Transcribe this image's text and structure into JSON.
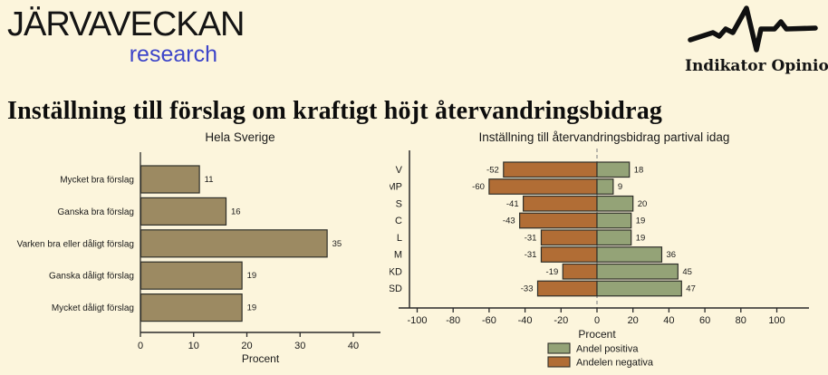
{
  "header": {
    "logo_left": {
      "line1": "JÄRVAVECKAN",
      "line2": "research",
      "line2_color": "#3D45C9"
    },
    "logo_right": {
      "label": "Indikator Opinion",
      "icon": "pulse-line-icon"
    }
  },
  "title": "Inställning till förslag om kraftigt höjt återvandringsbidrag",
  "colors": {
    "background": "#FCF5DC",
    "bar_tan": "#9C8A62",
    "bar_positive": "#94A377",
    "bar_negative": "#B16D35",
    "bar_border": "#30302a",
    "axis": "#2b2b2b",
    "zero_line": "#8f8f8f"
  },
  "chart_data": [
    {
      "type": "bar",
      "orientation": "horizontal",
      "title": "Hela Sverige",
      "categories": [
        "Mycket bra förslag",
        "Ganska bra förslag",
        "Varken bra eller dåligt förslag",
        "Ganska dåligt förslag",
        "Mycket dåligt förslag"
      ],
      "values": [
        11,
        16,
        35,
        19,
        19
      ],
      "xlabel": "Procent",
      "xlim": [
        0,
        45
      ],
      "xticks": [
        0,
        10,
        20,
        30,
        40
      ],
      "grid": false,
      "bar_color": "#9C8A62"
    },
    {
      "type": "bar",
      "orientation": "horizontal-diverging",
      "title": "Inställning till återvandringsbidrag partival idag",
      "categories": [
        "V",
        "MP",
        "S",
        "C",
        "L",
        "M",
        "KD",
        "SD"
      ],
      "series": [
        {
          "name": "Andel positiva",
          "color": "#94A377",
          "values": [
            18,
            9,
            20,
            19,
            19,
            36,
            45,
            47
          ]
        },
        {
          "name": "Andelen negativa",
          "color": "#B16D35",
          "values": [
            -52,
            -60,
            -41,
            -43,
            -31,
            -31,
            -19,
            -33
          ]
        }
      ],
      "xlabel": "Procent",
      "xlim": [
        -110,
        110
      ],
      "xticks": [
        -100,
        -80,
        -60,
        -40,
        -20,
        0,
        20,
        40,
        60,
        80,
        100
      ],
      "grid": false,
      "zero_line": "dashed",
      "legend_position": "bottom",
      "legend": [
        "Andel positiva",
        "Andelen negativa"
      ]
    }
  ]
}
